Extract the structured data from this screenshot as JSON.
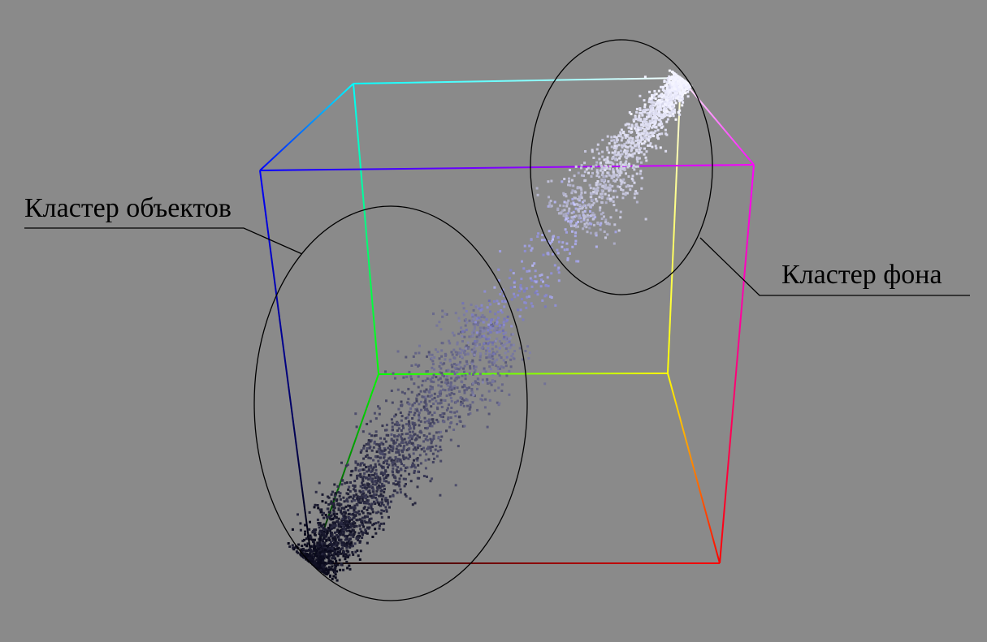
{
  "labels": {
    "objects_cluster": "Кластер объектов",
    "background_cluster": "Кластер фона"
  },
  "colors": {
    "background": "#8a8a8a",
    "annotation": "#000000",
    "cube_black": "#000000",
    "cube_red": "#ff0000",
    "cube_green": "#00ff00",
    "cube_blue": "#0000ff",
    "cube_yellow": "#ffff00",
    "cube_magenta": "#ff00ff",
    "cube_cyan": "#00ffff",
    "cube_white": "#ffffff"
  }
}
